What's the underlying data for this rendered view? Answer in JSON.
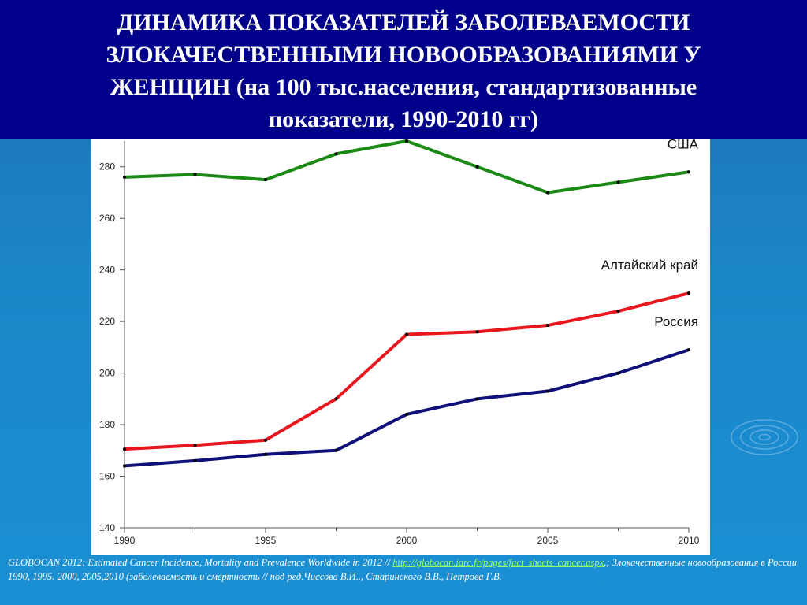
{
  "header": {
    "title_lines": [
      "ДИНАМИКА ПОКАЗАТЕЛЕЙ ЗАБОЛЕВАЕМОСТИ",
      "ЗЛОКАЧЕСТВЕННЫМИ НОВООБРАЗОВАНИЯМИ  У",
      "ЖЕНЩИН (на 100 тыс.населения, стандартизованные",
      "показатели, 1990-2010 гг)"
    ]
  },
  "citation": {
    "part1": "GLOBOCAN 2012: Estimated Cancer Incidence, Mortality and Prevalence Worldwide in 2012 // ",
    "link": "http://globocan.iarc.fr/pages/fact_sheets_cancer.aspx",
    "part2": ",; Злокачественные новообразования в России 1990, 1995. 2000, 2005,2010  (заболеваемость и смертность // под ред.Чиссова В.И.., Старинского В.В., Петрова Г.В."
  },
  "colors": {
    "header_bg": "#00008b",
    "usa": "#1a8a14",
    "altai": "#e8161d",
    "russia": "#10107a"
  },
  "chart_data": {
    "type": "line",
    "title": "",
    "xlabel": "",
    "ylabel": "",
    "xlim": [
      1990,
      2010
    ],
    "ylim": [
      140,
      290
    ],
    "x_ticks": [
      1990,
      1995,
      2000,
      2005,
      2010
    ],
    "y_ticks": [
      140,
      160,
      180,
      200,
      220,
      240,
      260,
      280
    ],
    "x": [
      1990,
      1992.5,
      1995,
      1997.5,
      2000,
      2002.5,
      2005,
      2007.5,
      2010
    ],
    "series": [
      {
        "name": "США",
        "color": "#1a8a14",
        "values": [
          276,
          277,
          275,
          285,
          290,
          280,
          270,
          274,
          278
        ]
      },
      {
        "name": "Алтайский край",
        "color": "#e8161d",
        "values": [
          170.5,
          172,
          174,
          190,
          215,
          216,
          218.5,
          224,
          231
        ]
      },
      {
        "name": "Россия",
        "color": "#10107a",
        "values": [
          164,
          166,
          168.5,
          170,
          184,
          190,
          193,
          200,
          209
        ]
      }
    ]
  }
}
